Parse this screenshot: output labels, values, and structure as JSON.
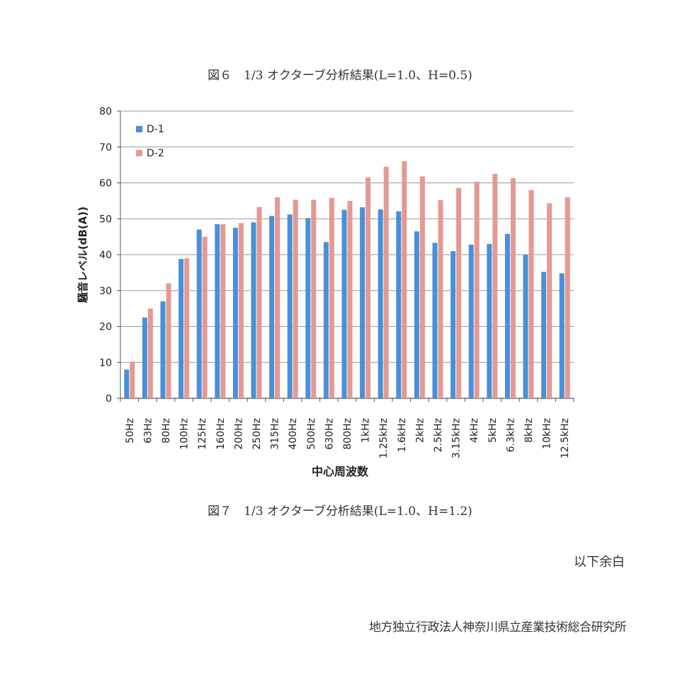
{
  "captions": {
    "top": "図６　1/3 オクターブ分析結果(L=1.0、H=0.5)",
    "bottom": "図７　1/3 オクターブ分析結果(L=1.0、H=1.2)"
  },
  "note": "以下余白",
  "organization": "地方独立行政法人神奈川県立産業技術総合研究所",
  "chart_data": {
    "type": "bar",
    "title": "",
    "xlabel": "中心周波数",
    "ylabel": "騒音レベル(dB(A))",
    "ylim": [
      0,
      80
    ],
    "yticks": [
      0,
      10,
      20,
      30,
      40,
      50,
      60,
      70,
      80
    ],
    "grid": true,
    "legend_position": "top-left",
    "categories": [
      "50Hz",
      "63Hz",
      "80Hz",
      "100Hz",
      "125Hz",
      "160Hz",
      "200Hz",
      "250Hz",
      "315Hz",
      "400Hz",
      "500Hz",
      "630Hz",
      "800Hz",
      "1kHz",
      "1.25kHz",
      "1.6kHz",
      "2kHz",
      "2.5kHz",
      "3.15kHz",
      "4kHz",
      "5kHz",
      "6.3kHz",
      "8kHz",
      "10kHz",
      "12.5kHz"
    ],
    "series": [
      {
        "name": "D-1",
        "color": "#4a90d9",
        "values": [
          8,
          22.5,
          27,
          38.8,
          47,
          48.5,
          47.5,
          49,
          50.8,
          51.2,
          50.2,
          43.5,
          52.5,
          53.2,
          52.6,
          52.1,
          46.5,
          43.3,
          41,
          42.8,
          43,
          45.8,
          40,
          35.2,
          34.8
        ]
      },
      {
        "name": "D-2",
        "color": "#e39a93",
        "values": [
          10.2,
          25,
          32,
          39,
          45,
          48.5,
          48.8,
          53.3,
          56,
          55.3,
          55.3,
          55.8,
          55,
          61.5,
          64.5,
          66,
          61.8,
          55.2,
          58.6,
          60.3,
          62.5,
          61.3,
          58,
          54.3,
          56
        ]
      }
    ]
  }
}
